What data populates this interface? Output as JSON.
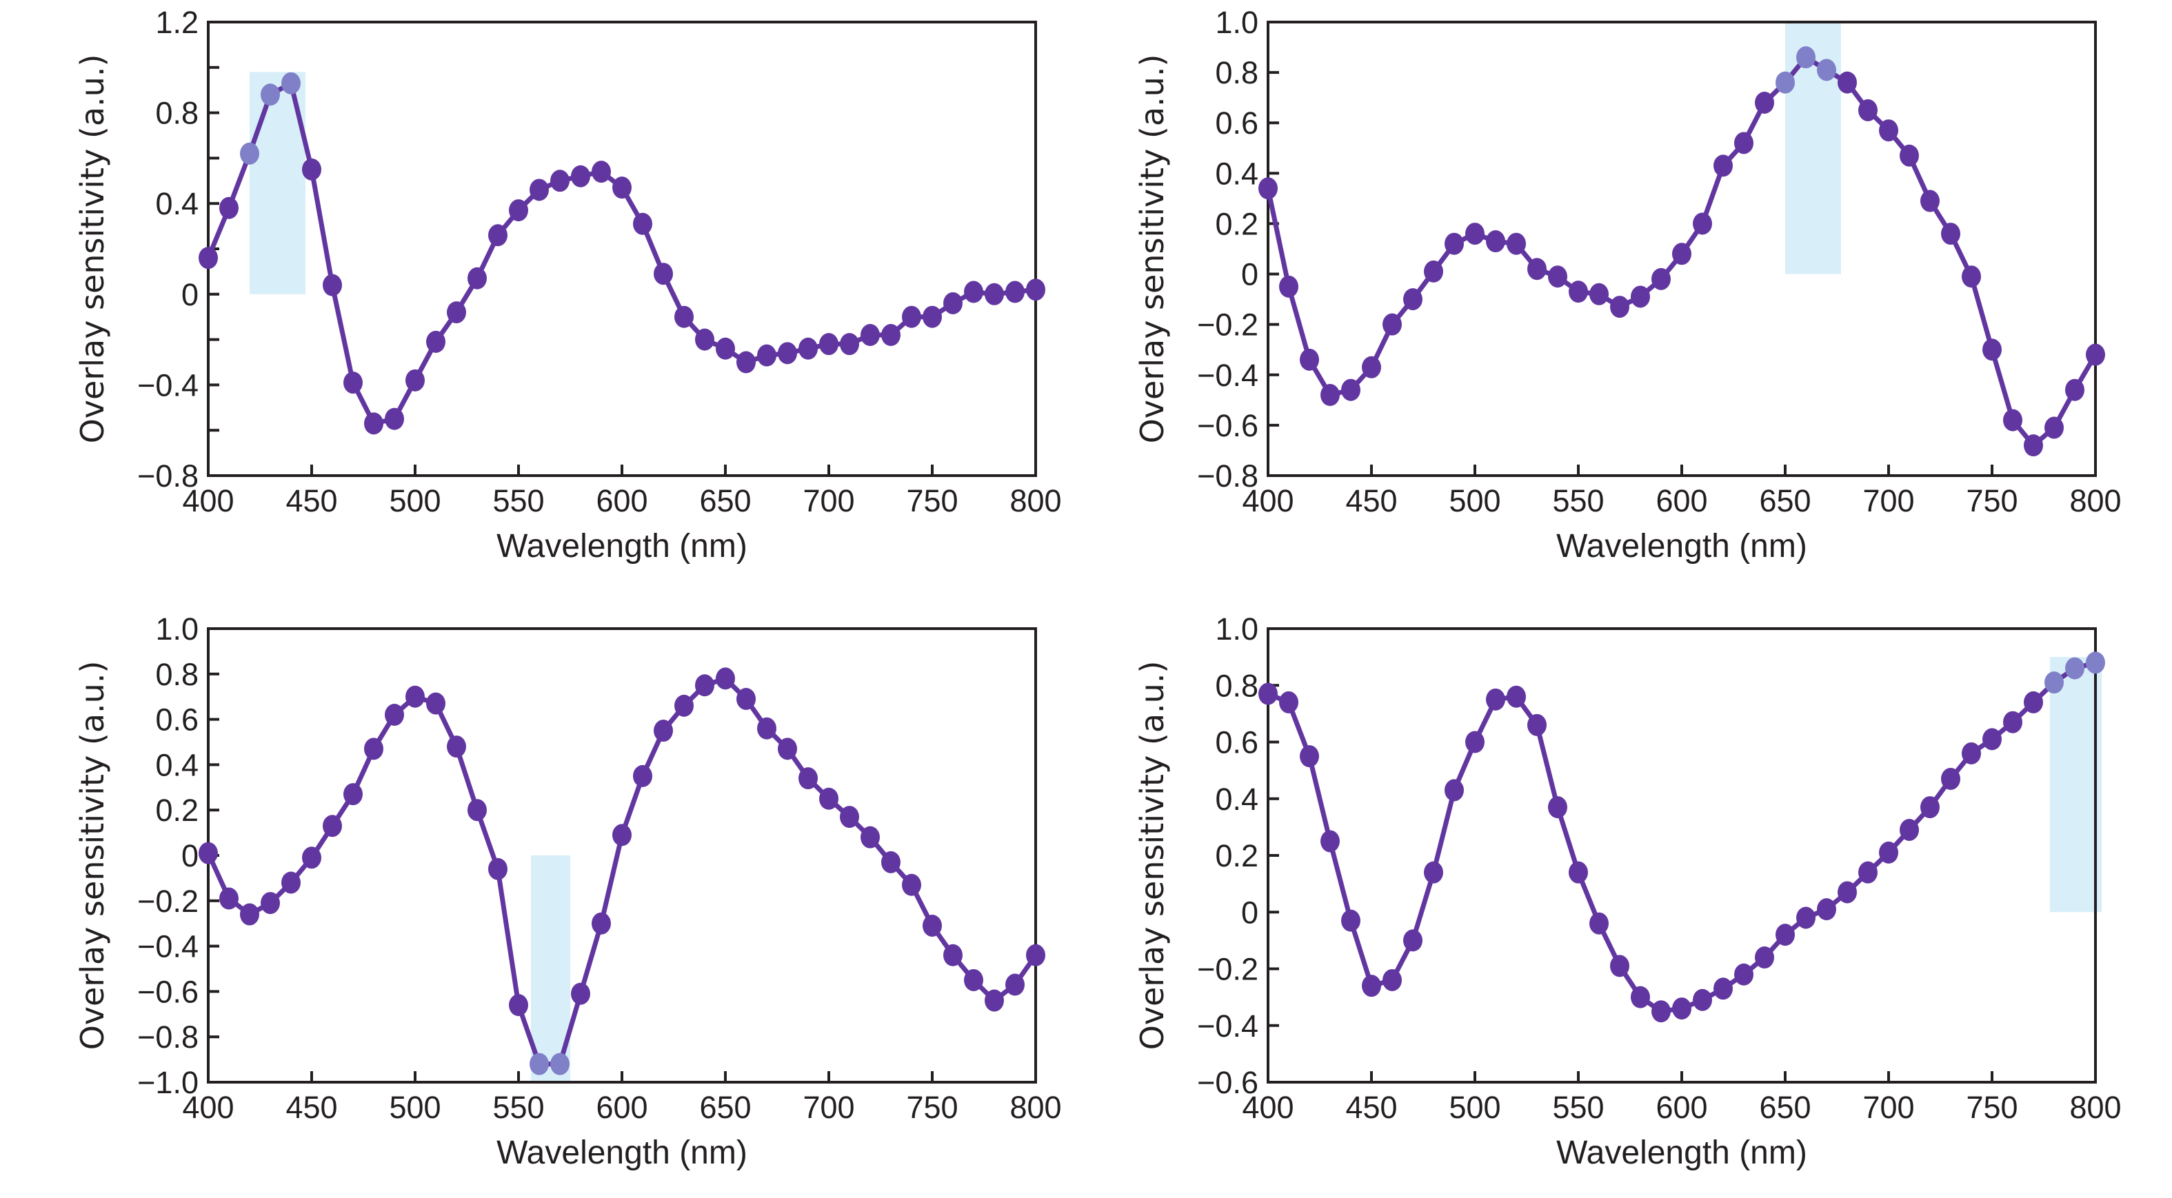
{
  "chart_data": [
    {
      "type": "line",
      "panel": "top-left",
      "title": "",
      "xlabel": "Wavelength (nm)",
      "ylabel": "Overlay sensitivity (a.u.)",
      "xlim": [
        400,
        800
      ],
      "ylim": [
        -0.8,
        1.2
      ],
      "xticks": [
        400,
        450,
        500,
        550,
        600,
        650,
        700,
        750,
        800
      ],
      "xtick_labels": [
        "400",
        "450",
        "500",
        "550",
        "600",
        "650",
        "700",
        "750",
        "800"
      ],
      "yticks_minor_step": 0.2,
      "yticks": [
        -0.8,
        -0.4,
        0,
        0.4,
        0.8,
        1.2
      ],
      "ytick_labels": [
        "−0.8",
        "−0.4",
        "0",
        "0.4",
        "0.8",
        "1.2"
      ],
      "grid": false,
      "legend": "none",
      "highlight": {
        "x_range": [
          420,
          447
        ],
        "y_range": [
          0,
          0.98
        ],
        "color": "#d8eff9"
      },
      "series": [
        {
          "name": "Overlay sensitivity",
          "color": "#6236a0",
          "highlight_point_color": "#7f80c8",
          "x": [
            400,
            410,
            420,
            430,
            440,
            450,
            460,
            470,
            480,
            490,
            500,
            510,
            520,
            530,
            540,
            550,
            560,
            570,
            580,
            590,
            600,
            610,
            620,
            630,
            640,
            650,
            660,
            670,
            680,
            690,
            700,
            710,
            720,
            730,
            740,
            750,
            760,
            770,
            780,
            790,
            800
          ],
          "y": [
            0.16,
            0.38,
            0.62,
            0.88,
            0.93,
            0.55,
            0.04,
            -0.39,
            -0.57,
            -0.55,
            -0.38,
            -0.21,
            -0.08,
            0.07,
            0.26,
            0.37,
            0.46,
            0.5,
            0.52,
            0.54,
            0.47,
            0.31,
            0.09,
            -0.1,
            -0.2,
            -0.24,
            -0.3,
            -0.27,
            -0.26,
            -0.24,
            -0.22,
            -0.22,
            -0.18,
            -0.18,
            -0.1,
            -0.1,
            -0.04,
            0.01,
            0.0,
            0.01,
            0.02
          ]
        }
      ]
    },
    {
      "type": "line",
      "panel": "top-right",
      "title": "",
      "xlabel": "Wavelength (nm)",
      "ylabel": "Overlay sensitivity (a.u.)",
      "xlim": [
        400,
        800
      ],
      "ylim": [
        -0.8,
        1.0
      ],
      "xticks": [
        400,
        450,
        500,
        550,
        600,
        650,
        700,
        750,
        800
      ],
      "xtick_labels": [
        "400",
        "450",
        "500",
        "550",
        "600",
        "650",
        "700",
        "750",
        "800"
      ],
      "yticks_minor_step": 0.2,
      "yticks": [
        -0.8,
        -0.6,
        -0.4,
        -0.2,
        0,
        0.2,
        0.4,
        0.6,
        0.8,
        1.0
      ],
      "ytick_labels": [
        "−0.8",
        "−0.6",
        "−0.4",
        "−0.2",
        "0",
        "0.2",
        "0.4",
        "0.6",
        "0.8",
        "1.0"
      ],
      "grid": false,
      "legend": "none",
      "highlight": {
        "x_range": [
          650,
          677
        ],
        "y_range": [
          0,
          1.0
        ],
        "color": "#d8eff9"
      },
      "series": [
        {
          "name": "Overlay sensitivity",
          "color": "#6236a0",
          "highlight_point_color": "#7f80c8",
          "x": [
            400,
            410,
            420,
            430,
            440,
            450,
            460,
            470,
            480,
            490,
            500,
            510,
            520,
            530,
            540,
            550,
            560,
            570,
            580,
            590,
            600,
            610,
            620,
            630,
            640,
            650,
            660,
            670,
            680,
            690,
            700,
            710,
            720,
            730,
            740,
            750,
            760,
            770,
            780,
            790,
            800
          ],
          "y": [
            0.34,
            -0.05,
            -0.34,
            -0.48,
            -0.46,
            -0.37,
            -0.2,
            -0.1,
            0.01,
            0.12,
            0.16,
            0.13,
            0.12,
            0.02,
            -0.01,
            -0.07,
            -0.08,
            -0.13,
            -0.09,
            -0.02,
            0.08,
            0.2,
            0.43,
            0.52,
            0.68,
            0.76,
            0.86,
            0.81,
            0.76,
            0.65,
            0.57,
            0.47,
            0.29,
            0.16,
            -0.01,
            -0.3,
            -0.58,
            -0.68,
            -0.61,
            -0.46,
            -0.32
          ]
        }
      ]
    },
    {
      "type": "line",
      "panel": "bottom-left",
      "title": "",
      "xlabel": "Wavelength (nm)",
      "ylabel": "Overlay sensitivity (a.u.)",
      "xlim": [
        400,
        800
      ],
      "ylim": [
        -1.0,
        1.0
      ],
      "xticks": [
        400,
        450,
        500,
        550,
        600,
        650,
        700,
        750,
        800
      ],
      "xtick_labels": [
        "400",
        "450",
        "500",
        "550",
        "600",
        "650",
        "700",
        "750",
        "800"
      ],
      "yticks_minor_step": 0.2,
      "yticks": [
        -1.0,
        -0.8,
        -0.6,
        -0.4,
        -0.2,
        0,
        0.2,
        0.4,
        0.6,
        0.8,
        1.0
      ],
      "ytick_labels": [
        "−1.0",
        "−0.8",
        "−0.6",
        "−0.4",
        "−0.2",
        "0",
        "0.2",
        "0.4",
        "0.6",
        "0.8",
        "1.0"
      ],
      "grid": false,
      "legend": "none",
      "highlight": {
        "x_range": [
          556,
          575
        ],
        "y_range": [
          -1.0,
          0
        ],
        "color": "#d8eff9"
      },
      "series": [
        {
          "name": "Overlay sensitivity",
          "color": "#6236a0",
          "highlight_point_color": "#7f80c8",
          "x": [
            400,
            410,
            420,
            430,
            440,
            450,
            460,
            470,
            480,
            490,
            500,
            510,
            520,
            530,
            540,
            550,
            560,
            570,
            580,
            590,
            600,
            610,
            620,
            630,
            640,
            650,
            660,
            670,
            680,
            690,
            700,
            710,
            720,
            730,
            740,
            750,
            760,
            770,
            780,
            790,
            800
          ],
          "y": [
            0.01,
            -0.19,
            -0.26,
            -0.21,
            -0.12,
            -0.01,
            0.13,
            0.27,
            0.47,
            0.62,
            0.7,
            0.67,
            0.48,
            0.2,
            -0.06,
            -0.66,
            -0.92,
            -0.92,
            -0.61,
            -0.3,
            0.09,
            0.35,
            0.55,
            0.66,
            0.75,
            0.78,
            0.69,
            0.56,
            0.47,
            0.34,
            0.25,
            0.17,
            0.08,
            -0.03,
            -0.13,
            -0.31,
            -0.44,
            -0.55,
            -0.64,
            -0.57,
            -0.44
          ]
        }
      ]
    },
    {
      "type": "line",
      "panel": "bottom-right",
      "title": "",
      "xlabel": "Wavelength (nm)",
      "ylabel": "Overlay sensitivity (a.u.)",
      "xlim": [
        400,
        800
      ],
      "ylim": [
        -0.6,
        1.0
      ],
      "xticks": [
        400,
        450,
        500,
        550,
        600,
        650,
        700,
        750,
        800
      ],
      "xtick_labels": [
        "400",
        "450",
        "500",
        "550",
        "600",
        "650",
        "700",
        "750",
        "800"
      ],
      "yticks_minor_step": 0.2,
      "yticks": [
        -0.6,
        -0.4,
        -0.2,
        0,
        0.2,
        0.4,
        0.6,
        0.8,
        1.0
      ],
      "ytick_labels": [
        "−0.6",
        "−0.4",
        "−0.2",
        "0",
        "0.2",
        "0.4",
        "0.6",
        "0.8",
        "1.0"
      ],
      "grid": false,
      "legend": "none",
      "highlight": {
        "x_range": [
          778,
          803
        ],
        "y_range": [
          0,
          0.9
        ],
        "color": "#d8eff9"
      },
      "series": [
        {
          "name": "Overlay sensitivity",
          "color": "#6236a0",
          "highlight_point_color": "#7f80c8",
          "x": [
            400,
            410,
            420,
            430,
            440,
            450,
            460,
            470,
            480,
            490,
            500,
            510,
            520,
            530,
            540,
            550,
            560,
            570,
            580,
            590,
            600,
            610,
            620,
            630,
            640,
            650,
            660,
            670,
            680,
            690,
            700,
            710,
            720,
            730,
            740,
            750,
            760,
            770,
            780,
            790,
            800
          ],
          "y": [
            0.77,
            0.74,
            0.55,
            0.25,
            -0.03,
            -0.26,
            -0.24,
            -0.1,
            0.14,
            0.43,
            0.6,
            0.75,
            0.76,
            0.66,
            0.37,
            0.14,
            -0.04,
            -0.19,
            -0.3,
            -0.35,
            -0.34,
            -0.31,
            -0.27,
            -0.22,
            -0.16,
            -0.08,
            -0.02,
            0.01,
            0.07,
            0.14,
            0.21,
            0.29,
            0.37,
            0.47,
            0.56,
            0.61,
            0.67,
            0.74,
            0.81,
            0.86,
            0.88
          ]
        }
      ]
    }
  ]
}
